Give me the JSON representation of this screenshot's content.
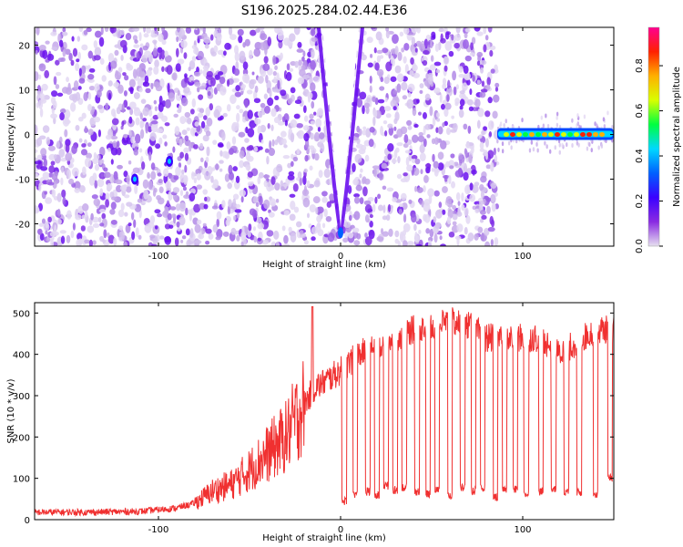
{
  "title": "S196.2025.284.02.44.E36",
  "chart_data": [
    {
      "type": "heatmap",
      "xlabel": "Height of straight line (km)",
      "ylabel": "Frequency (Hz)",
      "xlim": [
        -168,
        150
      ],
      "ylim": [
        -25,
        24
      ],
      "xticks": [
        -100,
        0,
        100
      ],
      "yticks": [
        -20,
        -10,
        0,
        10,
        20
      ],
      "colorbar": {
        "label": "Normalized spectral amplitude",
        "range": [
          0,
          0.97
        ],
        "ticks": [
          0,
          0.2,
          0.4,
          0.6,
          0.8
        ],
        "colors": [
          "#e6e0ef",
          "#8a2be2",
          "#3b00ff",
          "#0060ff",
          "#00d8ff",
          "#00ff40",
          "#d8ff00",
          "#ffb000",
          "#ff2000",
          "#ff0090"
        ]
      },
      "features": [
        {
          "name": "noise-field",
          "x_range": [
            -168,
            86
          ],
          "freq_range": [
            -25,
            24
          ],
          "amplitude": 0.05
        },
        {
          "name": "v-trace",
          "apex_x": 0,
          "apex_freq": -22,
          "top_x_range": [
            -12,
            12
          ],
          "amplitude": 0.1
        },
        {
          "name": "signal-band",
          "x_range": [
            86,
            150
          ],
          "freq": 0,
          "amplitude_max": 0.95
        }
      ]
    },
    {
      "type": "line",
      "xlabel": "Height of straight line (km)",
      "ylabel": "SNR (10 * v/v)",
      "xlim": [
        -168,
        150
      ],
      "ylim": [
        0,
        525
      ],
      "xticks": [
        -100,
        0,
        100
      ],
      "yticks": [
        0,
        100,
        200,
        300,
        400,
        500
      ],
      "series": [
        {
          "color": "#f03030",
          "x": [
            -168,
            -140,
            -110,
            -90,
            -80,
            -70,
            -60,
            -50,
            -40,
            -30,
            -20,
            -14,
            -10,
            0,
            10,
            20,
            30,
            40,
            50,
            60,
            70,
            80,
            90,
            100,
            110,
            120,
            130,
            140,
            150
          ],
          "y": [
            18,
            18,
            20,
            28,
            40,
            70,
            85,
            120,
            160,
            200,
            280,
            320,
            330,
            360,
            400,
            420,
            440,
            460,
            470,
            480,
            470,
            440,
            440,
            440,
            440,
            400,
            430,
            460,
            460
          ],
          "dips": [
            {
              "x": 2,
              "y": 45
            },
            {
              "x": 8,
              "y": 62
            },
            {
              "x": 15,
              "y": 68
            },
            {
              "x": 20,
              "y": 58
            },
            {
              "x": 25,
              "y": 82
            },
            {
              "x": 30,
              "y": 72
            },
            {
              "x": 35,
              "y": 78
            },
            {
              "x": 42,
              "y": 68
            },
            {
              "x": 48,
              "y": 62
            },
            {
              "x": 53,
              "y": 75
            },
            {
              "x": 60,
              "y": 58
            },
            {
              "x": 67,
              "y": 78
            },
            {
              "x": 73,
              "y": 70
            },
            {
              "x": 78,
              "y": 75
            },
            {
              "x": 85,
              "y": 55
            },
            {
              "x": 90,
              "y": 70
            },
            {
              "x": 96,
              "y": 72
            },
            {
              "x": 102,
              "y": 62
            },
            {
              "x": 110,
              "y": 68
            },
            {
              "x": 117,
              "y": 75
            },
            {
              "x": 124,
              "y": 68
            },
            {
              "x": 131,
              "y": 65
            },
            {
              "x": 140,
              "y": 62
            },
            {
              "x": 148,
              "y": 100
            }
          ]
        }
      ]
    }
  ]
}
